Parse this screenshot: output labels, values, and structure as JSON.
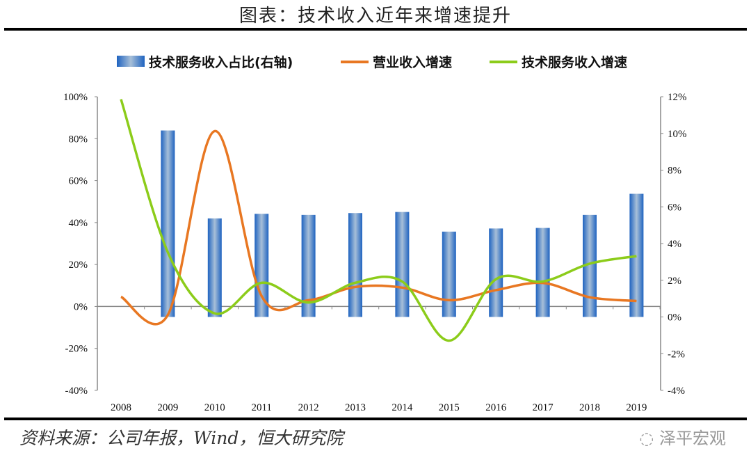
{
  "title": "图表：技术收入近年来增速提升",
  "source": "资料来源：公司年报，Wind，恒大研究院",
  "watermark": "泽平宏观",
  "chart_data": {
    "type": "bar+line",
    "title": "",
    "categories": [
      "2008",
      "2009",
      "2010",
      "2011",
      "2012",
      "2013",
      "2014",
      "2015",
      "2016",
      "2017",
      "2018",
      "2019"
    ],
    "left_axis": {
      "ylim": [
        -40,
        100
      ],
      "ticks": [
        "100%",
        "80%",
        "60%",
        "40%",
        "20%",
        "0%",
        "-20%",
        "-40%"
      ],
      "unit": "%"
    },
    "right_axis": {
      "ylim": [
        -4,
        12
      ],
      "ticks": [
        "12%",
        "10%",
        "8%",
        "6%",
        "4%",
        "2%",
        "0%",
        "-2%",
        "-4%"
      ],
      "unit": "%"
    },
    "legend_position": "top",
    "grid": false,
    "series": [
      {
        "name": "技术服务收入占比(右轴)",
        "type": "bar",
        "axis": "right",
        "color": "#2a6fc4",
        "values": [
          null,
          10.16,
          5.37,
          5.62,
          5.56,
          5.66,
          5.72,
          4.65,
          4.82,
          4.85,
          5.56,
          6.71
        ]
      },
      {
        "name": "营业收入增速",
        "type": "line",
        "axis": "left",
        "color": "#e87722",
        "values": [
          4.6,
          -4,
          83.6,
          5,
          3,
          9.3,
          9,
          3,
          7.8,
          11.2,
          4.4,
          2.6
        ]
      },
      {
        "name": "技术服务收入增速",
        "type": "line",
        "axis": "left",
        "color": "#8ccc1a",
        "values": [
          98.8,
          25.8,
          -3.3,
          11.3,
          1.9,
          11.3,
          11.9,
          -16.3,
          13,
          11.9,
          20.4,
          24
        ]
      }
    ]
  }
}
